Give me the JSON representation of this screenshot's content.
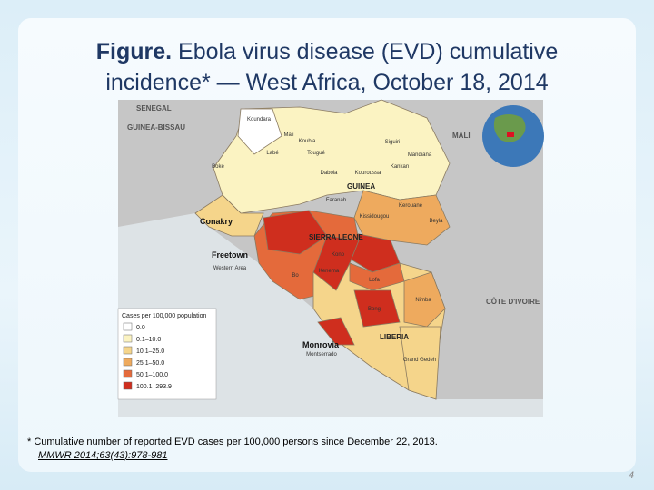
{
  "title": {
    "bold": "Figure.",
    "text": "Ebola virus disease (EVD) cumulative incidence* — West Africa, October 18, 2014"
  },
  "map": {
    "country_labels": [
      "SENEGAL",
      "GUINEA-BISSAU",
      "MALI",
      "GUINEA",
      "SIERRA LEONE",
      "LIBERIA",
      "CÔTE D'IVOIRE"
    ],
    "city_labels": [
      "Conakry",
      "Freetown",
      "Monrovia"
    ],
    "district_labels": [
      "Koundara",
      "Mali",
      "Koubia",
      "Labé",
      "Tougué",
      "Siguiri",
      "Boké",
      "Kankan",
      "Kouroussa",
      "Dabola",
      "Faranah",
      "Mandiana",
      "Kissidougou",
      "Kerouané",
      "Beyla",
      "Western Area",
      "Kono",
      "Kenema",
      "Bo",
      "Lofa",
      "Bong",
      "Nimba",
      "Grand Gedeh",
      "Montserrado"
    ],
    "legend": {
      "title": "Cases per 100,000 population",
      "entries": [
        {
          "label": "0.0",
          "color": "#ffffff"
        },
        {
          "label": "0.1–10.0",
          "color": "#fbf3c2"
        },
        {
          "label": "10.1–25.0",
          "color": "#f5d58b"
        },
        {
          "label": "25.1–50.0",
          "color": "#eeaa5e"
        },
        {
          "label": "50.1–100.0",
          "color": "#e46a3b"
        },
        {
          "label": "100.1–293.9",
          "color": "#cf2e1e"
        }
      ]
    }
  },
  "footnote": "* Cumulative number of reported EVD cases per 100,000 persons since December 22, 2013.",
  "citation": "MMWR 2014;63(43):978-981",
  "page_number": "4"
}
